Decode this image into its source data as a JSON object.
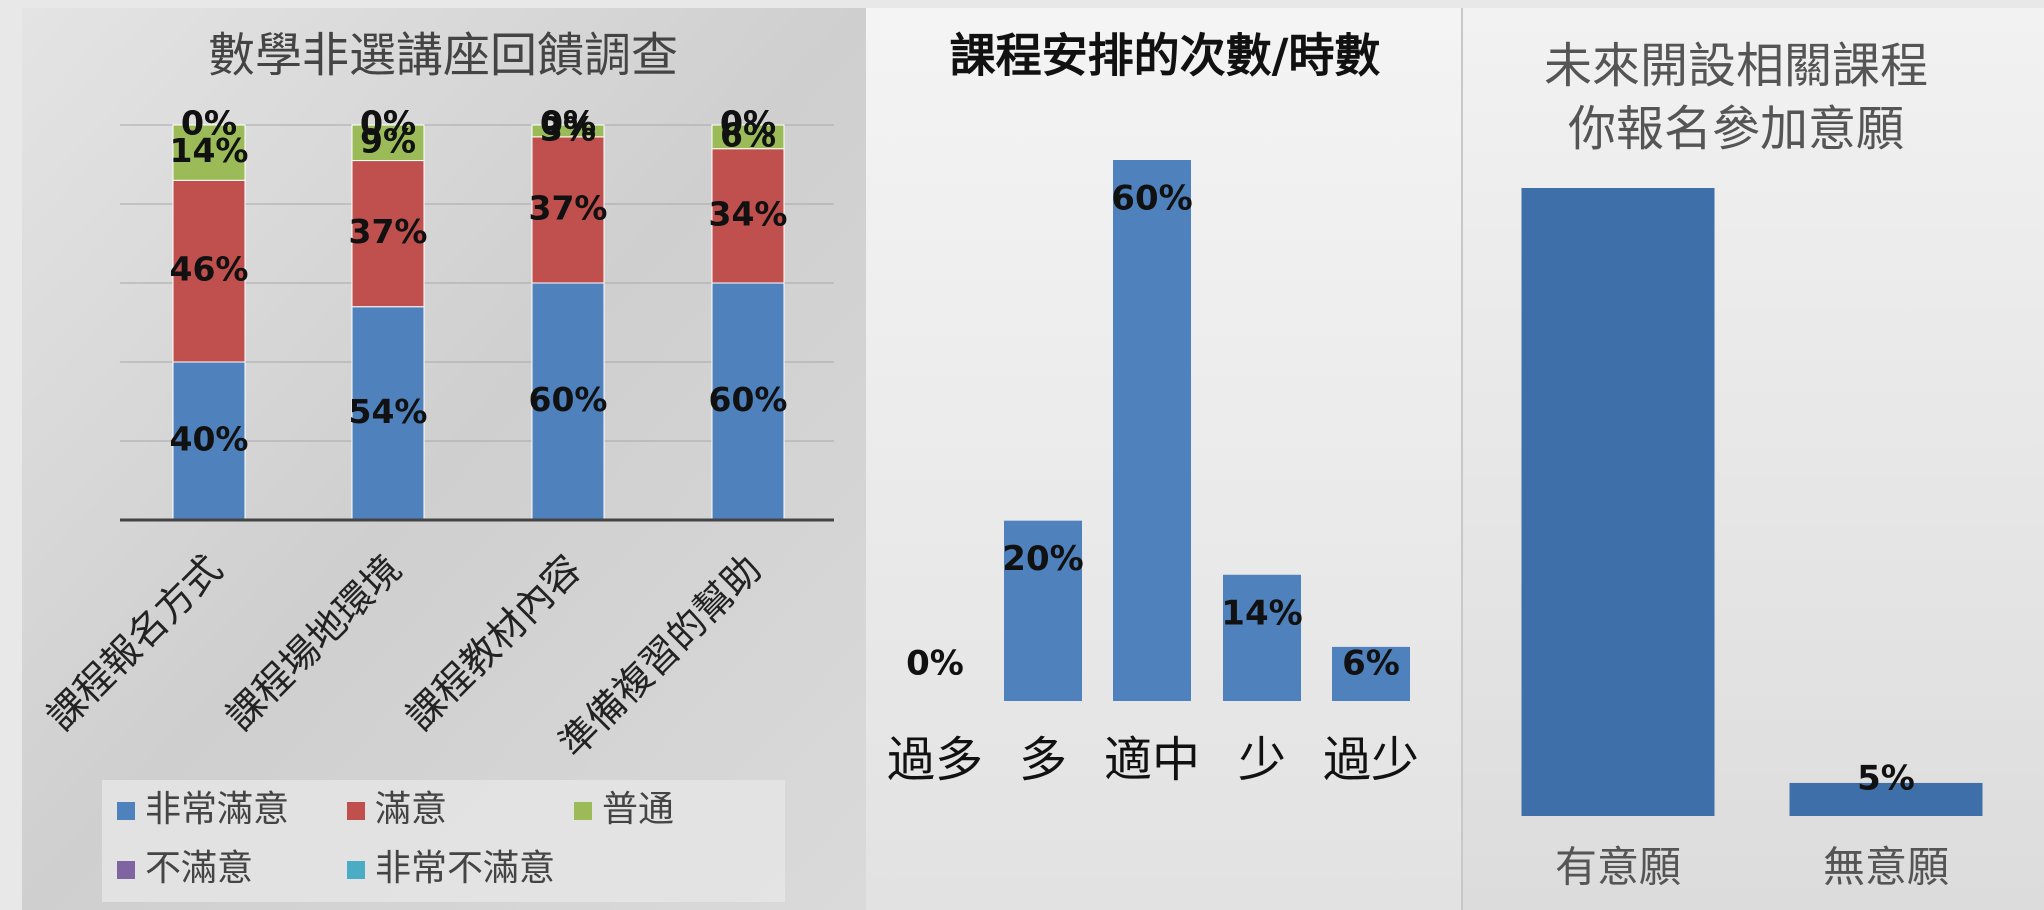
{
  "chart_data": [
    {
      "type": "stacked_bar",
      "title": "數學非選講座回饋調查",
      "categories": [
        "課程報名方式",
        "課程場地環境",
        "課程教材內容",
        "準備複習的幫助"
      ],
      "series": [
        {
          "name": "非常滿意",
          "color": "#4f81bd",
          "values": [
            40,
            54,
            60,
            60
          ],
          "value_labels": [
            "40%",
            "54%",
            "60%",
            "60%"
          ]
        },
        {
          "name": "滿意",
          "color": "#c0504d",
          "values": [
            46,
            37,
            37,
            34
          ],
          "value_labels": [
            "46%",
            "37%",
            "37%",
            "34%"
          ]
        },
        {
          "name": "普通",
          "color": "#9bbb59",
          "values": [
            14,
            9,
            3,
            6
          ],
          "value_labels": [
            "14%",
            "9%",
            "3%",
            "6%"
          ]
        },
        {
          "name": "不滿意",
          "color": "#8064a2",
          "values": [
            0,
            0,
            0,
            0
          ],
          "value_labels": [
            "0%",
            "0%",
            "0%",
            "0%"
          ]
        },
        {
          "name": "非常不滿意",
          "color": "#4bacc6",
          "values": [
            0,
            0,
            0,
            0
          ],
          "value_labels": [
            "0%",
            "0%",
            "0%",
            "0%"
          ]
        }
      ],
      "ylim": [
        0,
        100
      ],
      "yticks": [
        0,
        20,
        40,
        60,
        80,
        100
      ],
      "tick_labels": false,
      "grid": true,
      "legend": "bottom"
    },
    {
      "type": "bar",
      "title": "課程安排的次數/時數",
      "categories": [
        "過多",
        "多",
        "適中",
        "少",
        "過少"
      ],
      "values": [
        0,
        20,
        60,
        14,
        6
      ],
      "value_labels": [
        "0%",
        "20%",
        "60%",
        "14%",
        "6%"
      ],
      "color": "#4f81bd",
      "ylim": [
        0,
        60
      ]
    },
    {
      "type": "bar",
      "title": [
        "未來開設相關課程",
        "你報名參加意願"
      ],
      "categories": [
        "有意願",
        "無意願"
      ],
      "values": [
        95,
        5
      ],
      "value_labels": [
        null,
        "5%"
      ],
      "color": "#3f6fa8",
      "ylim": [
        0,
        95
      ]
    }
  ]
}
